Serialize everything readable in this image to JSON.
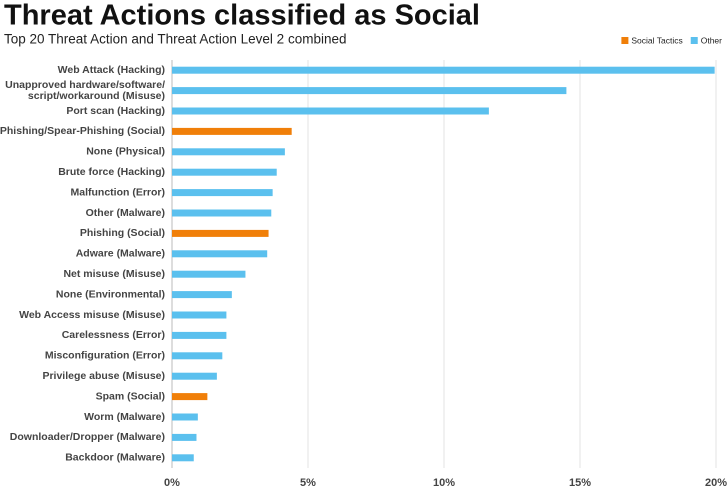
{
  "chart_data": {
    "type": "bar",
    "orientation": "horizontal",
    "title": "Threat Actions classified as Social",
    "subtitle": "Top 20 Threat Action and Threat Action Level 2 combined",
    "categories": [
      "Web Attack (Hacking)",
      "Unapproved hardware/software/script/workaround (Misuse)",
      "Port scan (Hacking)",
      "Phishing/Spear-Phishing (Social)",
      "None (Physical)",
      "Brute force (Hacking)",
      "Malfunction (Error)",
      "Other (Malware)",
      "Phishing (Social)",
      "Adware (Malware)",
      "Net misuse (Misuse)",
      "None (Environmental)",
      "Web Access misuse (Misuse)",
      "Carelessness (Error)",
      "Misconfiguration (Error)",
      "Privilege abuse (Misuse)",
      "Spam (Social)",
      "Worm (Malware)",
      "Downloader/Dropper (Malware)",
      "Backdoor (Malware)"
    ],
    "series": [
      {
        "name": "Social Tactics",
        "color": "#f07f09",
        "values": [
          null,
          null,
          null,
          4.4,
          null,
          null,
          null,
          null,
          3.55,
          null,
          null,
          null,
          null,
          null,
          null,
          null,
          1.3,
          null,
          null,
          null
        ]
      },
      {
        "name": "Other",
        "color": "#5bc0ee",
        "values": [
          19.95,
          14.5,
          11.65,
          null,
          4.15,
          3.85,
          3.7,
          3.65,
          null,
          3.5,
          2.7,
          2.2,
          2.0,
          2.0,
          1.85,
          1.65,
          null,
          0.95,
          0.9,
          0.8
        ]
      }
    ],
    "xlim": [
      0,
      20
    ],
    "xticks": [
      {
        "value": 0,
        "label": "0%"
      },
      {
        "value": 5,
        "label": "5%"
      },
      {
        "value": 10,
        "label": "10%"
      },
      {
        "value": 15,
        "label": "15%"
      },
      {
        "value": 20,
        "label": "20%"
      }
    ],
    "grid": true,
    "legend": "top-right"
  }
}
